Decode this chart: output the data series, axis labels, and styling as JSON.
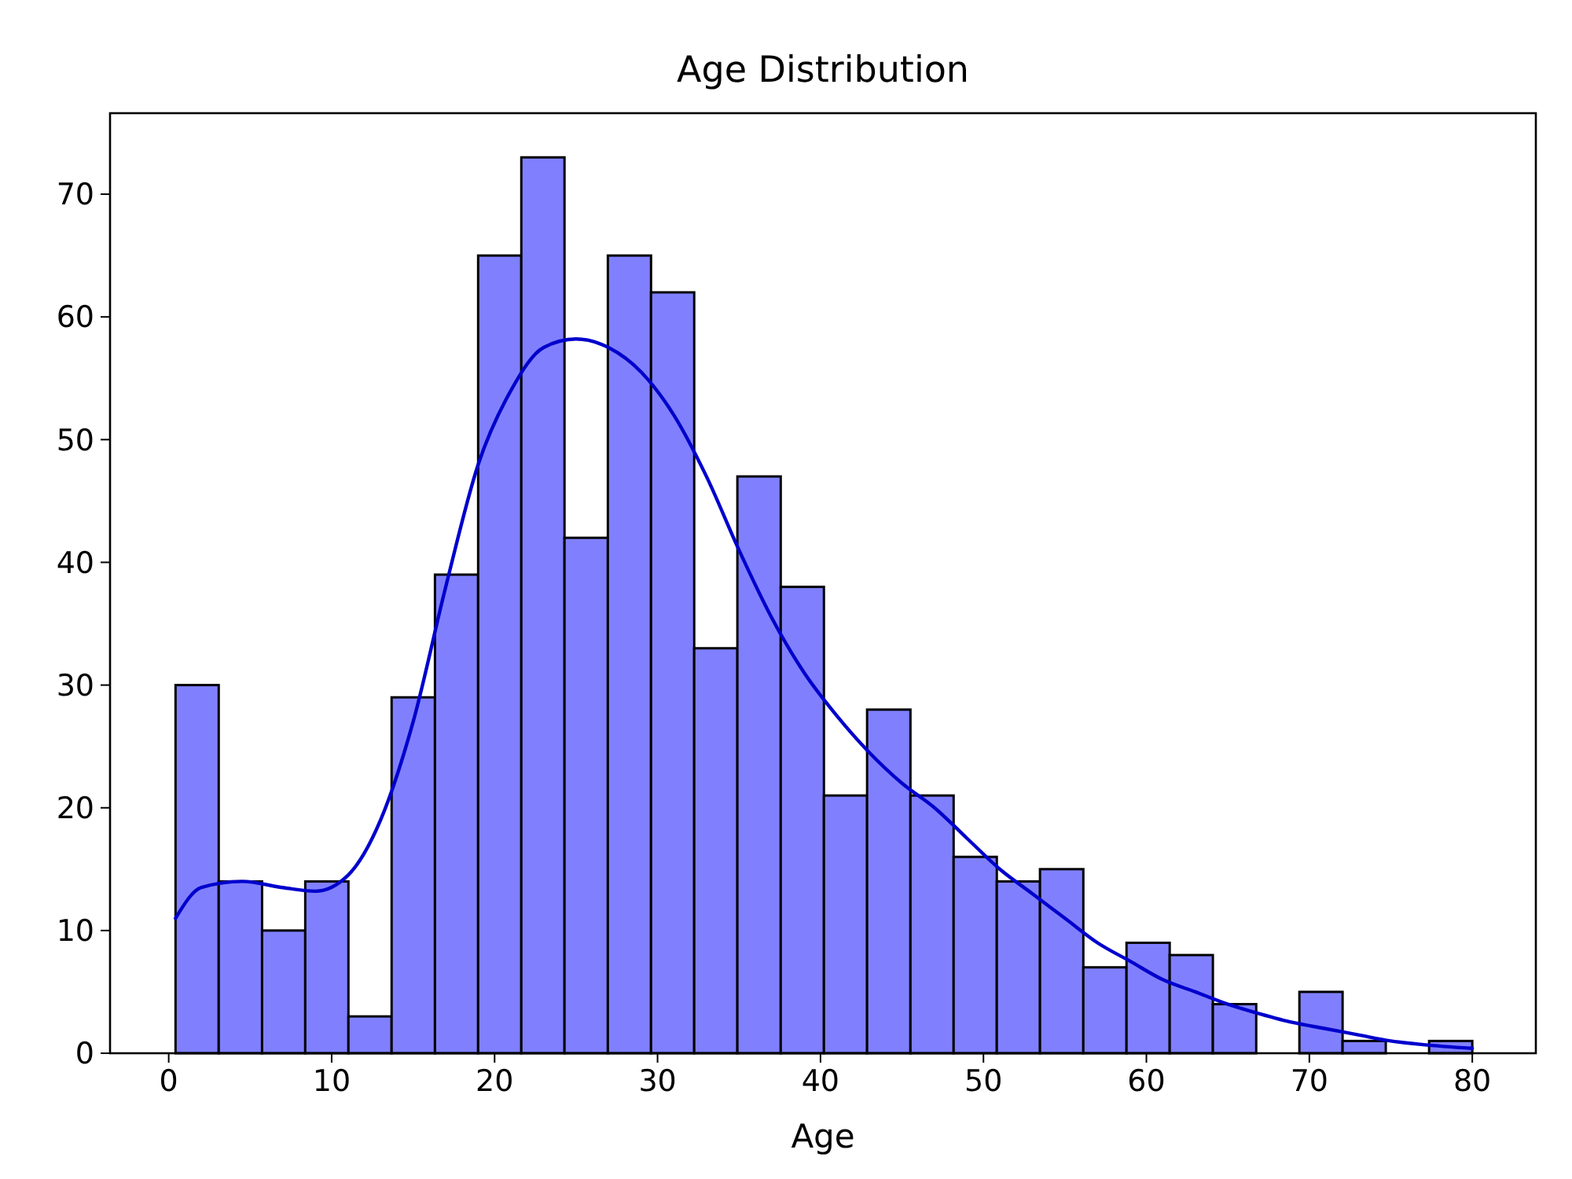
{
  "chart_data": {
    "type": "histogram",
    "title": "Age Distribution",
    "xlabel": "Age",
    "bins": [
      0.42,
      3.07,
      5.73,
      8.38,
      11.03,
      13.68,
      16.34,
      18.99,
      21.64,
      24.29,
      26.95,
      29.6,
      32.25,
      34.9,
      37.56,
      40.21,
      42.86,
      45.52,
      48.17,
      50.82,
      53.47,
      56.13,
      58.78,
      61.43,
      64.08,
      66.74,
      69.39,
      72.04,
      74.69,
      77.35,
      80
    ],
    "values": [
      30,
      14,
      10,
      14,
      3,
      29,
      39,
      65,
      73,
      42,
      65,
      62,
      33,
      47,
      38,
      21,
      28,
      21,
      16,
      14,
      15,
      7,
      9,
      8,
      4,
      0,
      5,
      1,
      0,
      1
    ],
    "color": "#8080fe",
    "series": [
      {
        "type": "line",
        "color": "#0000cc",
        "x": [
          0.42,
          2,
          4.5,
          7,
          9,
          11,
          13,
          15,
          17,
          19,
          21,
          23,
          25,
          27,
          29,
          31,
          33,
          35,
          37,
          39,
          41,
          43,
          45,
          47,
          49,
          51,
          53,
          55,
          57,
          59,
          61,
          63,
          65,
          67,
          69,
          71,
          73,
          75,
          77,
          80
        ],
        "values": [
          11,
          13.5,
          14,
          13.5,
          13.2,
          14.5,
          19,
          27,
          38,
          48,
          54,
          57.5,
          58.2,
          57.5,
          55.5,
          52,
          47,
          41,
          35.5,
          31,
          27.5,
          24.5,
          22,
          20,
          17.5,
          15,
          13,
          11,
          9,
          7.5,
          6,
          5,
          4,
          3.2,
          2.5,
          2,
          1.5,
          1,
          0.7,
          0.4
        ]
      }
    ],
    "xlim": [
      -3.6,
      83.9
    ],
    "ylim": [
      0,
      76.6
    ],
    "xticks": [
      0,
      10,
      20,
      30,
      40,
      50,
      60,
      70,
      80
    ],
    "yticks": [
      0,
      10,
      20,
      30,
      40,
      50,
      60,
      70
    ]
  }
}
